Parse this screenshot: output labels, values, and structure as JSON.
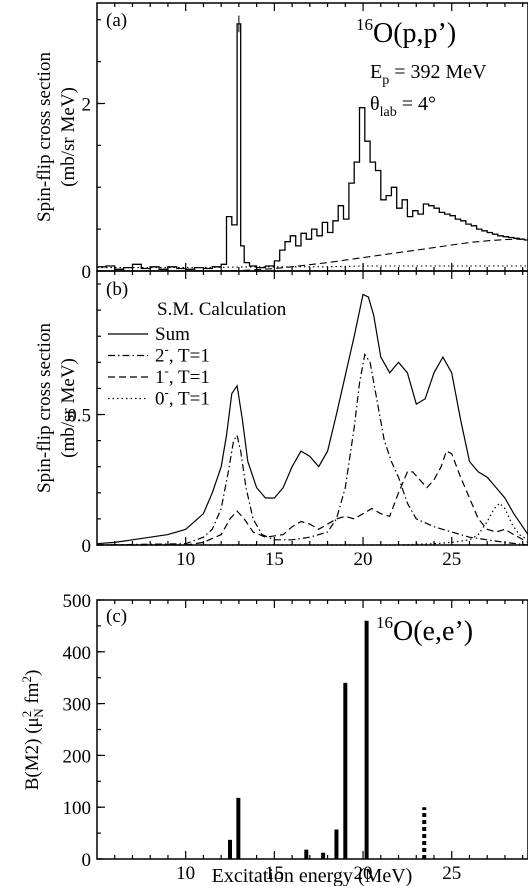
{
  "chart_data": [
    {
      "panel_label": "(a)",
      "type": "line",
      "title_main": "O(p,p’)",
      "title_sup": "16",
      "beam_label": "E",
      "beam_sub": "p",
      "beam_value": " = 392 MeV",
      "angle_label": "θ",
      "angle_sub": "lab",
      "angle_value": " = 4°",
      "ylabel_line1": "Spin-flip cross section",
      "ylabel_line2": "(mb/sr MeV)",
      "xlim": [
        5,
        29.3
      ],
      "ylim": [
        0,
        3.2
      ],
      "ytick_labels": [
        "0",
        "2"
      ],
      "ytick_values": [
        0,
        2
      ],
      "series": [
        {
          "style": "histogram",
          "x": [
            5.0,
            5.5,
            6.0,
            6.5,
            7.0,
            7.5,
            8.0,
            8.5,
            9.0,
            9.5,
            10.0,
            10.5,
            11.0,
            11.5,
            12.0,
            12.3,
            12.6,
            12.9,
            13.1,
            13.3,
            13.6,
            14.0,
            14.5,
            15.0,
            15.3,
            15.6,
            15.9,
            16.2,
            16.5,
            16.8,
            17.1,
            17.4,
            17.7,
            18.0,
            18.3,
            18.6,
            18.9,
            19.2,
            19.5,
            19.8,
            20.1,
            20.4,
            20.7,
            21.0,
            21.3,
            21.6,
            21.9,
            22.2,
            22.5,
            22.8,
            23.1,
            23.4,
            23.7,
            24.0,
            24.3,
            24.6,
            24.9,
            25.2,
            25.5,
            25.8,
            26.1,
            26.4,
            26.7,
            27.0,
            27.3,
            27.6,
            27.9,
            28.2,
            28.5,
            28.8,
            29.1
          ],
          "y": [
            0.05,
            0.06,
            0.02,
            0.04,
            0.08,
            0.03,
            0.05,
            0.02,
            0.05,
            0.03,
            0.02,
            0.04,
            0.03,
            0.05,
            0.08,
            0.65,
            0.55,
            2.95,
            0.3,
            0.1,
            0.06,
            0.04,
            0.06,
            0.12,
            0.25,
            0.35,
            0.42,
            0.3,
            0.45,
            0.38,
            0.5,
            0.42,
            0.58,
            0.46,
            0.6,
            0.78,
            0.62,
            1.05,
            1.3,
            1.95,
            1.55,
            1.3,
            1.2,
            0.85,
            0.9,
            1.0,
            0.75,
            0.85,
            0.65,
            0.72,
            0.68,
            0.8,
            0.78,
            0.75,
            0.7,
            0.68,
            0.66,
            0.62,
            0.6,
            0.56,
            0.54,
            0.5,
            0.48,
            0.46,
            0.44,
            0.42,
            0.41,
            0.4,
            0.39,
            0.38,
            0.37
          ]
        },
        {
          "style": "dashed",
          "x": [
            12,
            13,
            14,
            15,
            16,
            17,
            18,
            19,
            20,
            21,
            22,
            23,
            24,
            25,
            26,
            27,
            28,
            29.3
          ],
          "y": [
            0,
            0.005,
            0.015,
            0.03,
            0.05,
            0.075,
            0.1,
            0.13,
            0.16,
            0.19,
            0.22,
            0.25,
            0.28,
            0.31,
            0.34,
            0.36,
            0.375,
            0.385
          ]
        },
        {
          "style": "dotted",
          "x": [
            5,
            10,
            15,
            18,
            20,
            22,
            24,
            26,
            28,
            29.3
          ],
          "y": [
            0.04,
            0.04,
            0.05,
            0.05,
            0.06,
            0.06,
            0.06,
            0.06,
            0.06,
            0.06
          ]
        }
      ]
    },
    {
      "panel_label": "(b)",
      "type": "line",
      "title": "S.M. Calculation",
      "ylabel_line1": "Spin-flip cross section",
      "ylabel_line2": "(mb/sr MeV)",
      "xlim": [
        5,
        29.3
      ],
      "ylim": [
        0,
        1.05
      ],
      "ytick_labels": [
        "0",
        "0.5"
      ],
      "ytick_values": [
        0,
        0.5
      ],
      "legend": [
        {
          "main": "Sum",
          "sup": "",
          "rest": ""
        },
        {
          "main": "2",
          "sup": "-",
          "rest": ", T=1"
        },
        {
          "main": "1",
          "sup": "-",
          "rest": ", T=1"
        },
        {
          "main": "0",
          "sup": "-",
          "rest": ", T=1"
        }
      ],
      "series": [
        {
          "style": "solid",
          "x": [
            5,
            6,
            7,
            8,
            9,
            10,
            11,
            11.5,
            12,
            12.3,
            12.6,
            12.9,
            13.2,
            13.5,
            14,
            14.5,
            15,
            15.5,
            16,
            16.5,
            17,
            17.5,
            18,
            18.5,
            19,
            19.5,
            20,
            20.3,
            20.6,
            21,
            21.5,
            22,
            22.5,
            23,
            23.5,
            24,
            24.5,
            25,
            25.5,
            26,
            26.5,
            27,
            27.5,
            28,
            28.5,
            29.3
          ],
          "y": [
            0.005,
            0.01,
            0.02,
            0.03,
            0.04,
            0.06,
            0.12,
            0.2,
            0.3,
            0.42,
            0.58,
            0.61,
            0.48,
            0.32,
            0.22,
            0.18,
            0.18,
            0.22,
            0.3,
            0.36,
            0.34,
            0.3,
            0.36,
            0.5,
            0.65,
            0.8,
            0.96,
            0.95,
            0.88,
            0.72,
            0.66,
            0.7,
            0.66,
            0.54,
            0.56,
            0.66,
            0.72,
            0.66,
            0.48,
            0.32,
            0.28,
            0.26,
            0.22,
            0.18,
            0.12,
            0.04
          ]
        },
        {
          "style": "dashdot",
          "x": [
            5,
            10,
            11,
            11.5,
            12,
            12.4,
            12.7,
            12.9,
            13.1,
            13.4,
            13.8,
            14.3,
            15,
            16,
            17,
            18,
            18.5,
            19,
            19.5,
            19.8,
            20.1,
            20.4,
            20.8,
            21.2,
            21.6,
            22,
            22.5,
            23,
            24,
            25,
            26,
            27,
            28,
            29.3
          ],
          "y": [
            0,
            0.005,
            0.03,
            0.06,
            0.14,
            0.28,
            0.4,
            0.42,
            0.36,
            0.22,
            0.1,
            0.04,
            0.02,
            0.02,
            0.03,
            0.05,
            0.1,
            0.22,
            0.45,
            0.62,
            0.73,
            0.7,
            0.55,
            0.4,
            0.32,
            0.26,
            0.16,
            0.1,
            0.07,
            0.05,
            0.03,
            0.02,
            0.01,
            0
          ]
        },
        {
          "style": "dashed",
          "x": [
            5,
            10,
            11,
            12,
            12.5,
            12.9,
            13.3,
            13.8,
            14.5,
            15.5,
            16,
            16.5,
            17,
            17.5,
            18,
            18.5,
            19,
            19.5,
            20,
            20.5,
            21,
            21.5,
            22,
            22.5,
            22.8,
            23.2,
            23.6,
            24,
            24.4,
            24.7,
            25,
            25.5,
            26,
            26.5,
            27,
            27.5,
            28,
            28.5,
            29.3
          ],
          "y": [
            0,
            0,
            0.01,
            0.04,
            0.1,
            0.13,
            0.1,
            0.05,
            0.03,
            0.04,
            0.07,
            0.09,
            0.08,
            0.06,
            0.08,
            0.1,
            0.11,
            0.1,
            0.12,
            0.14,
            0.12,
            0.11,
            0.2,
            0.28,
            0.28,
            0.25,
            0.22,
            0.25,
            0.3,
            0.36,
            0.35,
            0.26,
            0.18,
            0.1,
            0.06,
            0.05,
            0.06,
            0.04,
            0.01
          ]
        },
        {
          "style": "dotted",
          "x": [
            5,
            22,
            24,
            25,
            26,
            26.5,
            27,
            27.4,
            27.7,
            28,
            28.4,
            28.8,
            29.3
          ],
          "y": [
            0,
            0,
            0.005,
            0.01,
            0.02,
            0.04,
            0.09,
            0.14,
            0.16,
            0.14,
            0.08,
            0.04,
            0.02
          ]
        }
      ]
    },
    {
      "panel_label": "(c)",
      "type": "bar",
      "title_main": "O(e,e’)",
      "title_sup": "16",
      "ylabel": "B(M2) (μ",
      "ylabel_sub": "N",
      "ylabel_sup": "2",
      "ylabel_tail": " fm",
      "ylabel_tail_sup": "2",
      "ylabel_end": ")",
      "xlabel": "Excitation energy (MeV)",
      "xlim": [
        5,
        29.3
      ],
      "ylim": [
        0,
        500
      ],
      "ytick_labels": [
        "0",
        "100",
        "200",
        "300",
        "400",
        "500"
      ],
      "ytick_values": [
        0,
        100,
        200,
        300,
        400,
        500
      ],
      "xtick_labels": [
        "10",
        "15",
        "20",
        "25"
      ],
      "xtick_values": [
        10,
        15,
        20,
        25
      ],
      "bars": [
        {
          "x": 12.5,
          "value": 37,
          "style": "solid"
        },
        {
          "x": 12.97,
          "value": 118,
          "style": "solid"
        },
        {
          "x": 16.8,
          "value": 18,
          "style": "solid"
        },
        {
          "x": 17.75,
          "value": 12,
          "style": "solid"
        },
        {
          "x": 18.5,
          "value": 57,
          "style": "solid"
        },
        {
          "x": 19.0,
          "value": 340,
          "style": "solid"
        },
        {
          "x": 20.2,
          "value": 460,
          "style": "solid"
        },
        {
          "x": 23.45,
          "value": 100,
          "style": "dotted"
        }
      ]
    }
  ]
}
